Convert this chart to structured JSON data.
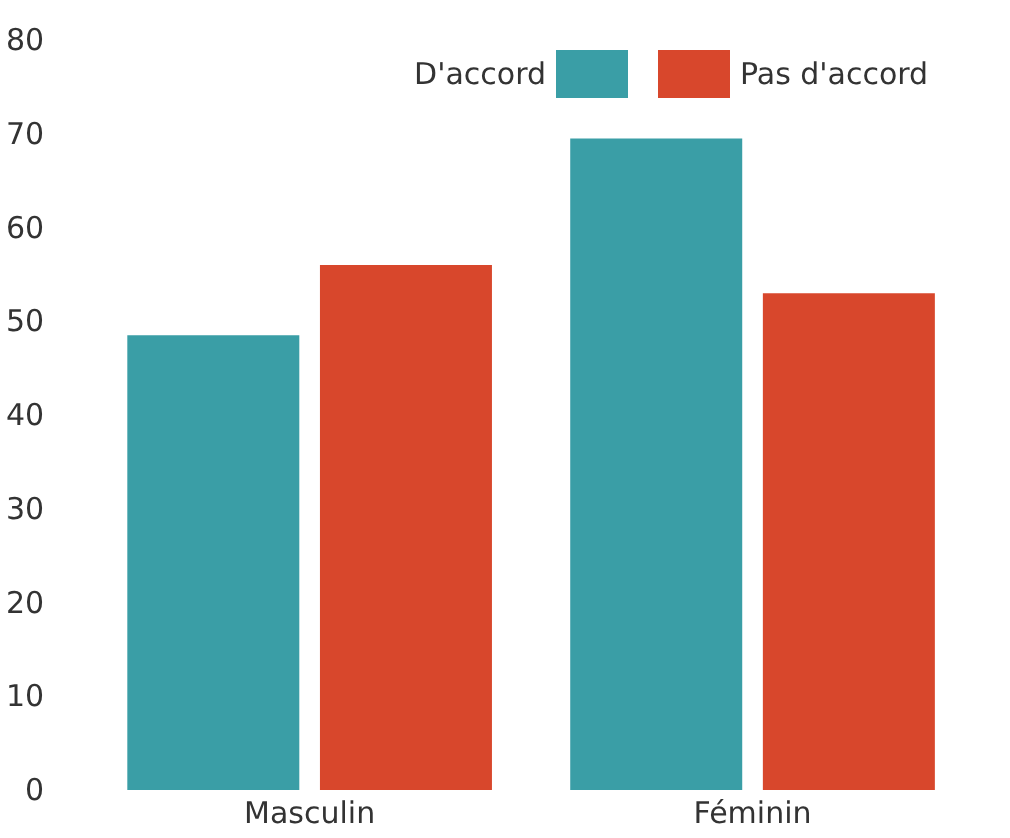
{
  "chart_data": {
    "type": "bar",
    "categories": [
      "Masculin",
      "Féminin"
    ],
    "series": [
      {
        "name": "D'accord",
        "color": "#3a9ea6",
        "values": [
          48.5,
          69.5
        ]
      },
      {
        "name": "Pas d'accord",
        "color": "#d8472c",
        "values": [
          56,
          53
        ]
      }
    ],
    "ylim": [
      0,
      80
    ],
    "yticks": [
      0,
      10,
      20,
      30,
      40,
      50,
      60,
      70,
      80
    ],
    "grid": false,
    "legend": "top right"
  }
}
